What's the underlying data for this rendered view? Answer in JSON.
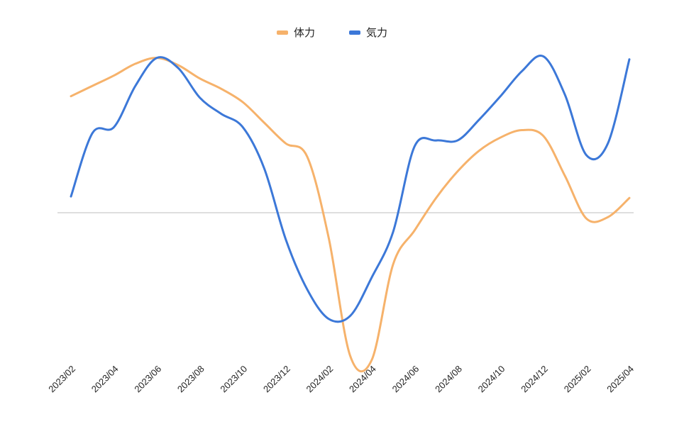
{
  "chart_data": {
    "type": "line",
    "title": "",
    "xlabel": "",
    "ylabel": "",
    "smooth": true,
    "grid": false,
    "zero_line": true,
    "y_axis_labels": false,
    "ylim": [
      -100,
      100
    ],
    "legend_position": "top-center",
    "categories": [
      "2023/02",
      "2023/04",
      "2023/06",
      "2023/08",
      "2023/10",
      "2023/12",
      "2024/02",
      "2024/04",
      "2024/06",
      "2024/08",
      "2024/10",
      "2024/12",
      "2025/02",
      "2025/04"
    ],
    "x": [
      "2023/02",
      "2023/03",
      "2023/04",
      "2023/05",
      "2023/06",
      "2023/07",
      "2023/08",
      "2023/09",
      "2023/10",
      "2023/11",
      "2023/12",
      "2024/01",
      "2024/02",
      "2024/03",
      "2024/04",
      "2024/05",
      "2024/06",
      "2024/07",
      "2024/08",
      "2024/09",
      "2024/10",
      "2024/11",
      "2024/12",
      "2025/01",
      "2025/02",
      "2025/03",
      "2025/04"
    ],
    "series": [
      {
        "name": "体力",
        "color": "#f6b26b",
        "values": [
          79,
          86,
          93,
          101,
          105,
          100,
          91,
          84,
          75,
          61,
          47,
          38,
          -17,
          -97,
          -100,
          -35,
          -12,
          10,
          28,
          42,
          51,
          56,
          52,
          25,
          -4,
          -3,
          10
        ]
      },
      {
        "name": "気力",
        "color": "#3c78d8",
        "values": [
          11,
          54,
          58,
          86,
          105,
          98,
          78,
          67,
          58,
          30,
          -18,
          -52,
          -72,
          -70,
          -44,
          -13,
          45,
          49,
          49,
          63,
          79,
          96,
          106,
          80,
          39,
          47,
          104
        ]
      }
    ]
  }
}
